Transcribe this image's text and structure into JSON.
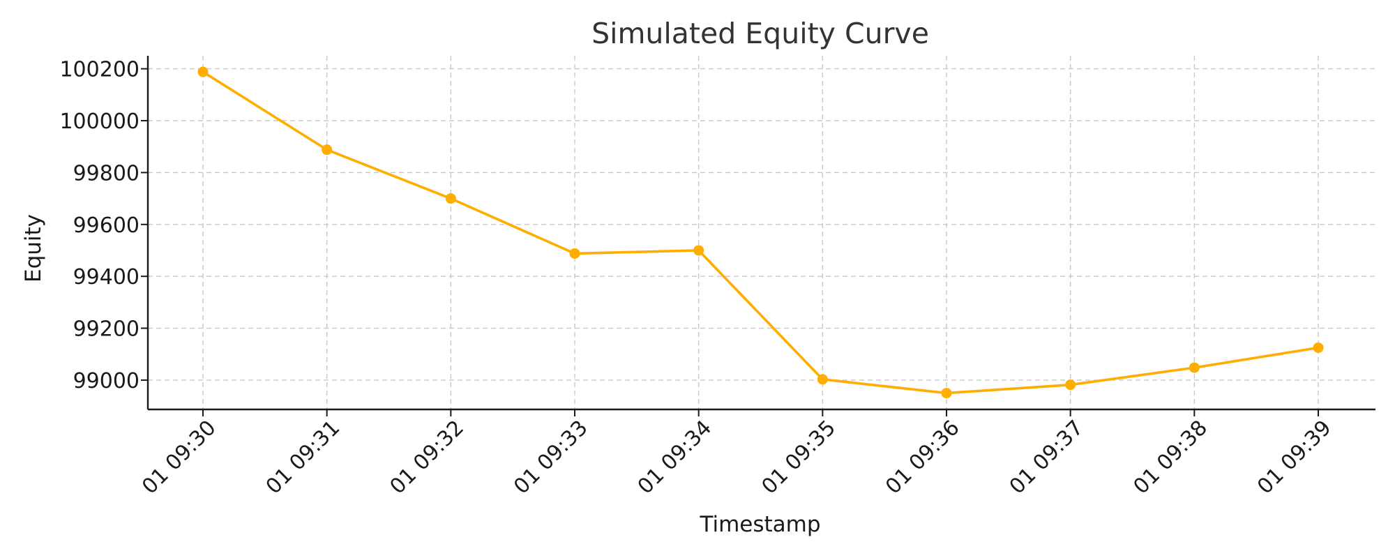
{
  "chart_data": {
    "type": "line",
    "title": "Simulated Equity Curve",
    "xlabel": "Timestamp",
    "ylabel": "Equity",
    "categories": [
      "01 09:30",
      "01 09:31",
      "01 09:32",
      "01 09:33",
      "01 09:34",
      "01 09:35",
      "01 09:36",
      "01 09:37",
      "01 09:38",
      "01 09:39"
    ],
    "series": [
      {
        "values": [
          100188,
          99888,
          99700,
          99488,
          99500,
          99003,
          98950,
          98982,
          99048,
          99125
        ],
        "color": "#FFAE00"
      }
    ],
    "yticks": [
      99000,
      99200,
      99400,
      99600,
      99800,
      100000,
      100200
    ],
    "ylim": [
      98887,
      100250
    ],
    "grid": true,
    "x_tick_rotation_deg": 45
  }
}
